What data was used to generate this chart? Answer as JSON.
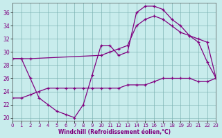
{
  "xlabel": "Windchill (Refroidissement éolien,°C)",
  "background_color": "#c8ecec",
  "line_color": "#800080",
  "xlim": [
    0,
    23
  ],
  "ylim": [
    19.5,
    37.5
  ],
  "yticks": [
    20,
    22,
    24,
    26,
    28,
    30,
    32,
    34,
    36
  ],
  "xticks": [
    0,
    1,
    2,
    3,
    4,
    5,
    6,
    7,
    8,
    9,
    10,
    11,
    12,
    13,
    14,
    15,
    16,
    17,
    18,
    19,
    20,
    21,
    22,
    23
  ],
  "curve1_x": [
    0,
    1,
    2,
    3,
    4,
    5,
    6,
    7,
    8,
    9,
    10,
    11,
    12,
    13,
    14,
    15,
    16,
    17,
    18,
    19,
    20,
    21,
    22,
    23
  ],
  "curve1_y": [
    29,
    29,
    26,
    23,
    22,
    21,
    20.5,
    20,
    22,
    26.5,
    31,
    31,
    29.5,
    30,
    36,
    37,
    37,
    36.5,
    35,
    34,
    32.5,
    31.5,
    28.5,
    26
  ],
  "curve2_x": [
    0,
    1,
    2,
    10,
    11,
    12,
    13,
    14,
    15,
    16,
    17,
    18,
    19,
    20,
    21,
    22,
    23
  ],
  "curve2_y": [
    29,
    29,
    29,
    29.5,
    30,
    30.5,
    31,
    34,
    35,
    35.5,
    35,
    34,
    33,
    32.5,
    32,
    31.5,
    26
  ],
  "curve3_x": [
    0,
    1,
    2,
    3,
    4,
    5,
    6,
    7,
    8,
    9,
    10,
    11,
    12,
    13,
    14,
    15,
    16,
    17,
    18,
    19,
    20,
    21,
    22,
    23
  ],
  "curve3_y": [
    23,
    23,
    23.5,
    24,
    24.5,
    24.5,
    24.5,
    24.5,
    24.5,
    24.5,
    24.5,
    24.5,
    24.5,
    25,
    25,
    25,
    25.5,
    26,
    26,
    26,
    26,
    25.5,
    25.5,
    26
  ]
}
